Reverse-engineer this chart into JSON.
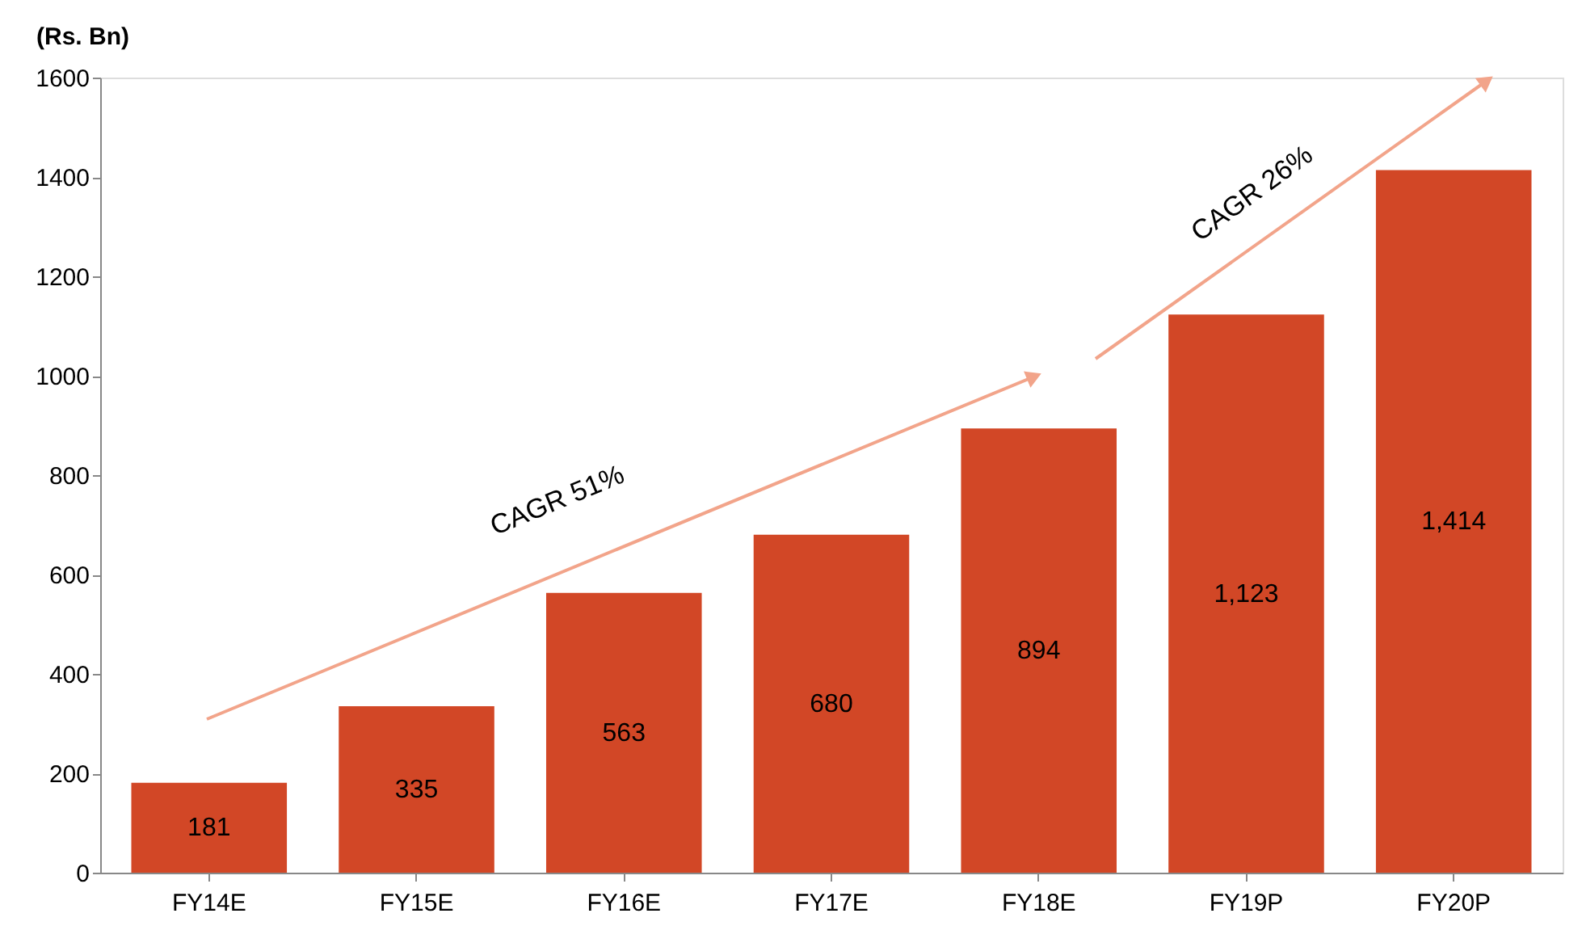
{
  "chart_data": {
    "type": "bar",
    "ylabel": "(Rs. Bn)",
    "categories": [
      "FY14E",
      "FY15E",
      "FY16E",
      "FY17E",
      "FY18E",
      "FY19P",
      "FY20P"
    ],
    "values": [
      181,
      335,
      563,
      680,
      894,
      1123,
      1414
    ],
    "value_labels": [
      "181",
      "335",
      "563",
      "680",
      "894",
      "1,123",
      "1,414"
    ],
    "color": "#d24726",
    "ylim": [
      0,
      1600
    ],
    "yticks": [
      0,
      200,
      400,
      600,
      800,
      1000,
      1200,
      1400,
      1600
    ],
    "grid": false,
    "annotations": [
      "CAGR 51%",
      "CAGR 26%"
    ]
  }
}
